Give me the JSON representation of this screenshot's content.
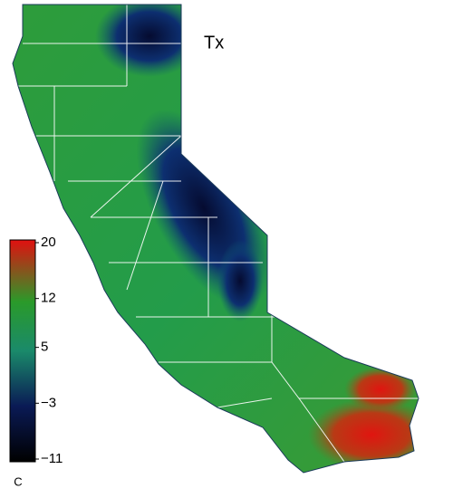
{
  "map": {
    "title": "Tx",
    "colorbar": {
      "lim": [
        -11,
        20
      ],
      "ticks": [
        20,
        12,
        5,
        {
          "value": -3,
          "label": "−3"
        },
        {
          "value": -11,
          "label": "−11"
        }
      ],
      "unit": "C"
    }
  }
}
